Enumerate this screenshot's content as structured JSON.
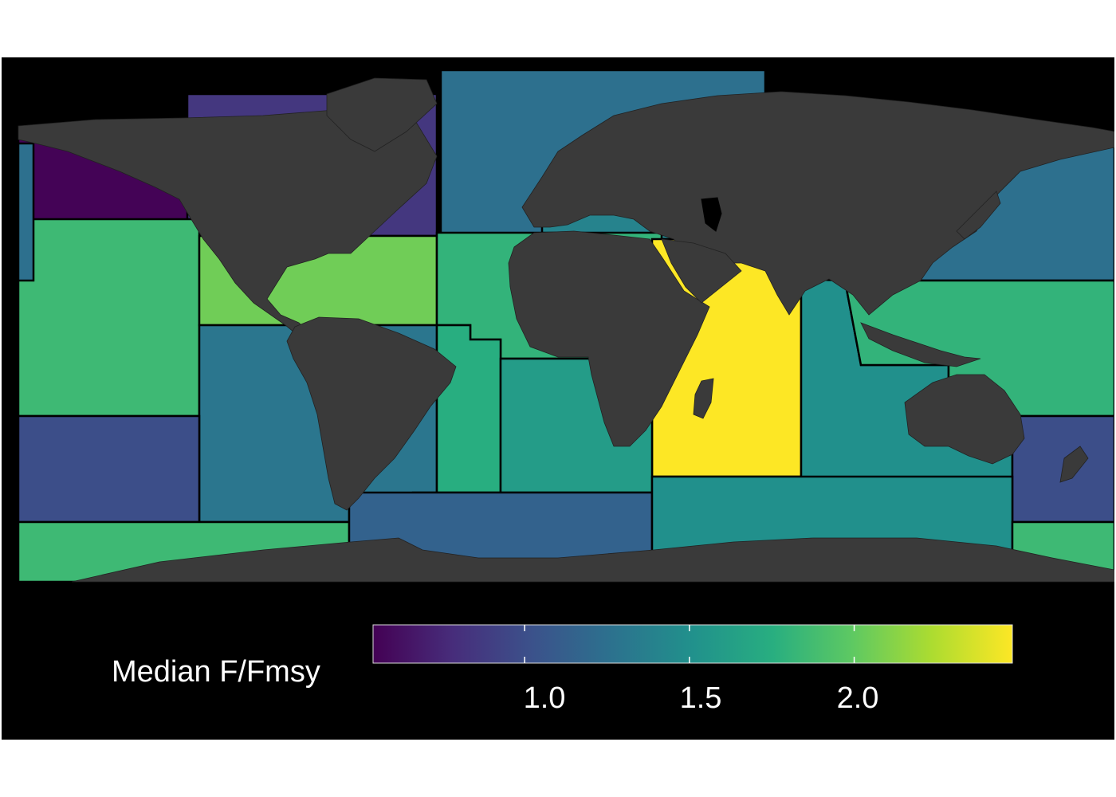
{
  "legend": {
    "title": "Median F/Fmsy",
    "ticks": [
      "1.0",
      "1.5",
      "2.0"
    ],
    "range": [
      0.54,
      2.48
    ],
    "palette": [
      "#440154",
      "#472d7b",
      "#3b528b",
      "#2c728e",
      "#21918c",
      "#28ae80",
      "#5ec962",
      "#addc30",
      "#fde725"
    ]
  },
  "colors": {
    "background": "#000000",
    "land": "#3a3a3a",
    "border": "#000000"
  },
  "regions": [
    {
      "name": "Northeast Pacific",
      "value": 0.55
    },
    {
      "name": "Northwest Atlantic",
      "value": 0.85
    },
    {
      "name": "Northeast Atlantic",
      "value": 1.25
    },
    {
      "name": "Mediterranean and Black Sea",
      "value": 1.4
    },
    {
      "name": "Northwest Pacific",
      "value": 1.25
    },
    {
      "name": "Eastern Central Pacific",
      "value": 1.85
    },
    {
      "name": "Western Central Atlantic",
      "value": 2.05
    },
    {
      "name": "Eastern Central Atlantic",
      "value": 1.8
    },
    {
      "name": "Western Indian Ocean",
      "value": 2.48
    },
    {
      "name": "Eastern Indian Ocean",
      "value": 1.5
    },
    {
      "name": "Western Central Pacific",
      "value": 1.8
    },
    {
      "name": "Southeast Pacific",
      "value": 1.3
    },
    {
      "name": "Southwest Atlantic",
      "value": 1.75
    },
    {
      "name": "Southeast Atlantic",
      "value": 1.6
    },
    {
      "name": "Southeast Pacific (offshore)",
      "value": 1.0
    },
    {
      "name": "Southwest Pacific",
      "value": 1.0
    },
    {
      "name": "Pacific Antarctic",
      "value": 1.85
    },
    {
      "name": "Atlantic Antarctic",
      "value": 1.15
    },
    {
      "name": "Indian Ocean Antarctic",
      "value": 1.5
    }
  ]
}
